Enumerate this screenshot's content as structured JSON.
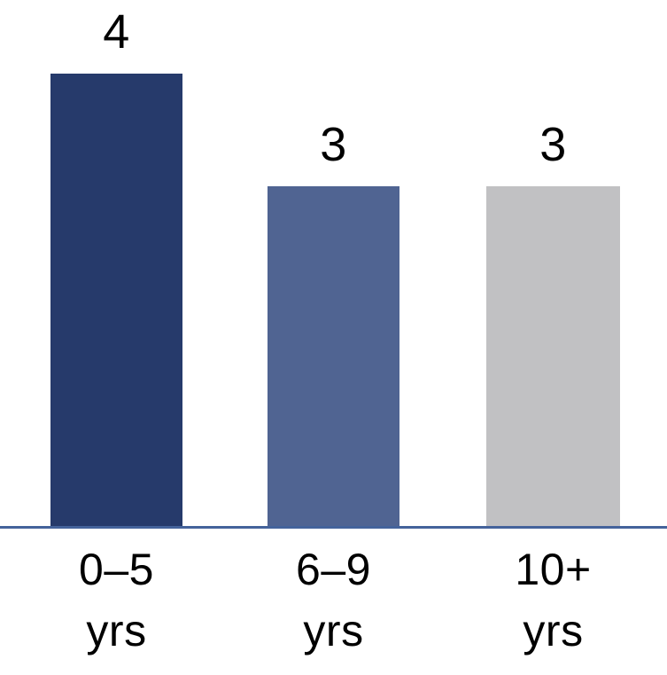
{
  "chart_data": {
    "type": "bar",
    "title": "",
    "xlabel": "",
    "ylabel": "",
    "categories": [
      "0–5 yrs",
      "6–9 yrs",
      "10+ yrs"
    ],
    "values": [
      4,
      3,
      3
    ],
    "ylim": [
      0,
      4
    ],
    "grid": false,
    "legend": false,
    "axis_line_color": "#44639b",
    "value_label_color": "#000000",
    "bars": [
      {
        "range": "0–5",
        "unit": "yrs",
        "value": 4,
        "color": "#263a6b"
      },
      {
        "range": "6–9",
        "unit": "yrs",
        "value": 3,
        "color": "#506492"
      },
      {
        "range": "10+",
        "unit": "yrs",
        "value": 3,
        "color": "#c1c1c3"
      }
    ]
  }
}
